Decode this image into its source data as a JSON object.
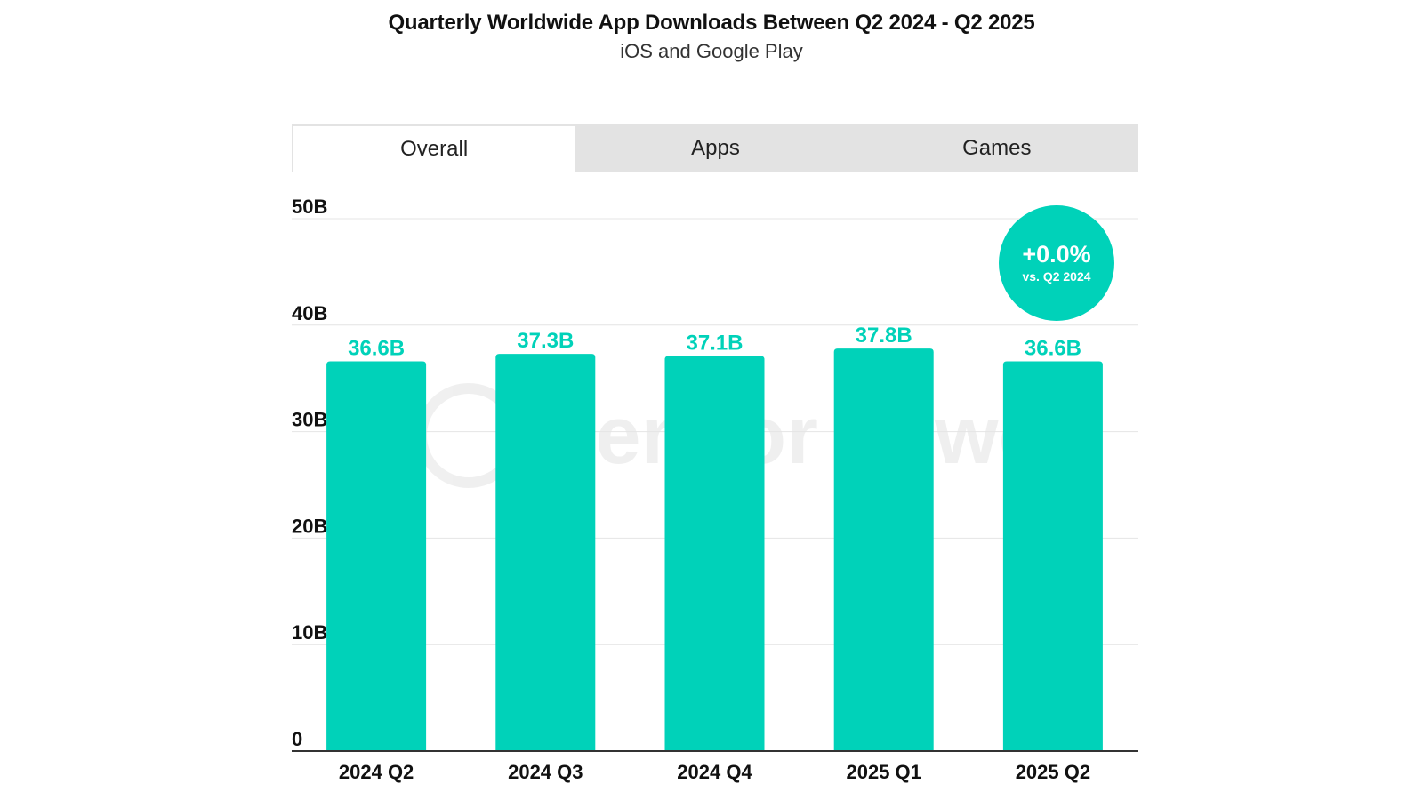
{
  "header": {
    "title": "Quarterly Worldwide App Downloads Between Q2 2024 - Q2 2025",
    "subtitle": "iOS and Google Play"
  },
  "tabs": [
    {
      "label": "Overall",
      "active": true
    },
    {
      "label": "Apps",
      "active": false
    },
    {
      "label": "Games",
      "active": false
    }
  ],
  "badge": {
    "change": "+0.0%",
    "reference": "vs. Q2 2024",
    "color": "#00d2b9"
  },
  "watermark": {
    "text": "Sensor Tower"
  },
  "colors": {
    "bar": "#00d2b9",
    "value_label": "#00d2b9",
    "gridline": "#e4e4e4",
    "axis": "#333333"
  },
  "chart_data": {
    "type": "bar",
    "title": "Quarterly Worldwide App Downloads Between Q2 2024 - Q2 2025",
    "subtitle": "iOS and Google Play",
    "categories": [
      "2024 Q2",
      "2024 Q3",
      "2024 Q4",
      "2025 Q1",
      "2025 Q2"
    ],
    "values": [
      36.6,
      37.3,
      37.1,
      37.8,
      36.6
    ],
    "value_labels": [
      "36.6B",
      "37.3B",
      "37.1B",
      "37.8B",
      "36.6B"
    ],
    "unit": "B",
    "ylim": [
      0,
      50
    ],
    "yticks": [
      0,
      10,
      20,
      30,
      40,
      50
    ],
    "ytick_labels": [
      "0",
      "10B",
      "20B",
      "30B",
      "40B",
      "50B"
    ],
    "grid": true,
    "legend": "none"
  }
}
